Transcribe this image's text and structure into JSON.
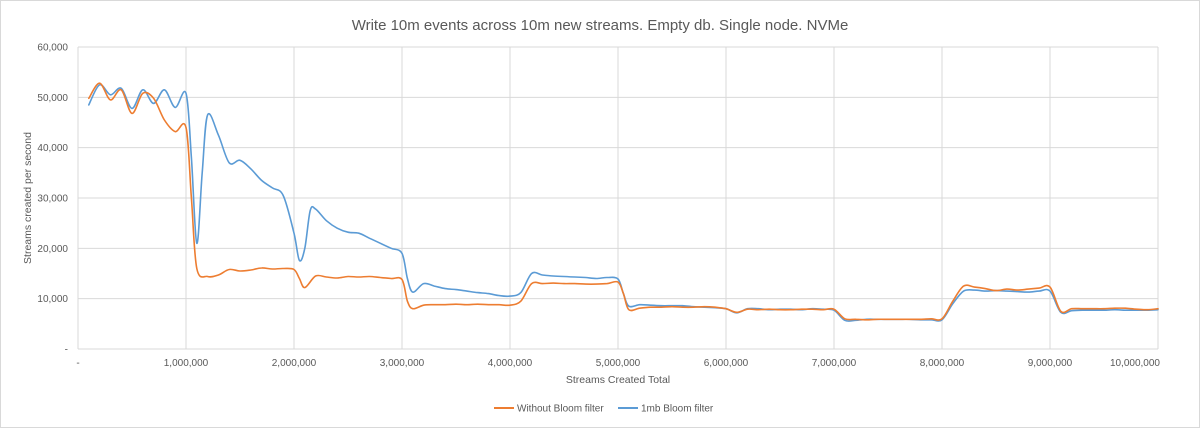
{
  "chart_data": {
    "type": "line",
    "title": "Write 10m events across 10m new streams. Empty db. Single node. NVMe",
    "xlabel": "Streams Created Total",
    "ylabel": "Streams created per second",
    "xlim": [
      0,
      10000000
    ],
    "ylim": [
      0,
      60000
    ],
    "x_ticks": [
      "-",
      "1,000,000",
      "2,000,000",
      "3,000,000",
      "4,000,000",
      "5,000,000",
      "6,000,000",
      "7,000,000",
      "8,000,000",
      "9,000,000",
      "10,000,000"
    ],
    "y_ticks": [
      "-",
      "10,000",
      "20,000",
      "30,000",
      "40,000",
      "50,000",
      "60,000"
    ],
    "grid": "vertical and horizontal",
    "legend_position": "bottom",
    "series": [
      {
        "name": "Without Bloom filter",
        "color": "#ED7D31",
        "x": [
          100000,
          200000,
          300000,
          400000,
          500000,
          600000,
          700000,
          800000,
          900000,
          1000000,
          1050000,
          1100000,
          1200000,
          1300000,
          1400000,
          1500000,
          1600000,
          1700000,
          1800000,
          1900000,
          2000000,
          2050000,
          2100000,
          2200000,
          2300000,
          2400000,
          2500000,
          2600000,
          2700000,
          2800000,
          2900000,
          3000000,
          3050000,
          3100000,
          3200000,
          3300000,
          3400000,
          3500000,
          3600000,
          3700000,
          3800000,
          3900000,
          4000000,
          4100000,
          4200000,
          4300000,
          4400000,
          4500000,
          4600000,
          4700000,
          4800000,
          4900000,
          5000000,
          5050000,
          5100000,
          5200000,
          5300000,
          5400000,
          5500000,
          5600000,
          5700000,
          5800000,
          5900000,
          6000000,
          6100000,
          6200000,
          6300000,
          6400000,
          6500000,
          6600000,
          6700000,
          6800000,
          6900000,
          7000000,
          7100000,
          7200000,
          7300000,
          7400000,
          7500000,
          7600000,
          7700000,
          7800000,
          7900000,
          8000000,
          8100000,
          8200000,
          8300000,
          8400000,
          8500000,
          8600000,
          8700000,
          8800000,
          8900000,
          9000000,
          9100000,
          9200000,
          9300000,
          9400000,
          9500000,
          9600000,
          9700000,
          9800000,
          9900000,
          10000000
        ],
        "values": [
          49800,
          52800,
          49500,
          51500,
          46800,
          50800,
          49800,
          45500,
          43200,
          44000,
          30000,
          16000,
          14400,
          14700,
          15800,
          15500,
          15700,
          16100,
          15900,
          16000,
          15800,
          14000,
          12200,
          14500,
          14300,
          14100,
          14400,
          14300,
          14400,
          14200,
          14000,
          13800,
          9500,
          8000,
          8700,
          8800,
          8800,
          8900,
          8800,
          8900,
          8800,
          8800,
          8700,
          9500,
          13000,
          13000,
          13100,
          13000,
          13000,
          12900,
          12900,
          13000,
          13300,
          11000,
          7800,
          8100,
          8300,
          8300,
          8400,
          8300,
          8300,
          8400,
          8300,
          8000,
          7300,
          7900,
          7800,
          7900,
          7800,
          7800,
          7900,
          7900,
          7800,
          7900,
          6000,
          5900,
          5800,
          5900,
          5900,
          5900,
          5900,
          5900,
          6000,
          6000,
          9500,
          12500,
          12300,
          12000,
          11600,
          11900,
          11700,
          11900,
          12100,
          12300,
          7500,
          8000,
          8000,
          8000,
          8000,
          8100,
          8100,
          7900,
          7800,
          8000
        ]
      },
      {
        "name": "1mb Bloom filter",
        "color": "#5B9BD5",
        "x": [
          100000,
          200000,
          300000,
          400000,
          500000,
          600000,
          700000,
          800000,
          900000,
          1000000,
          1050000,
          1100000,
          1150000,
          1200000,
          1300000,
          1400000,
          1500000,
          1600000,
          1700000,
          1800000,
          1900000,
          2000000,
          2050000,
          2100000,
          2150000,
          2200000,
          2300000,
          2400000,
          2500000,
          2600000,
          2700000,
          2800000,
          2900000,
          3000000,
          3050000,
          3100000,
          3200000,
          3300000,
          3400000,
          3500000,
          3600000,
          3700000,
          3800000,
          3900000,
          4000000,
          4100000,
          4200000,
          4300000,
          4400000,
          4500000,
          4600000,
          4700000,
          4800000,
          4900000,
          5000000,
          5050000,
          5100000,
          5200000,
          5300000,
          5400000,
          5500000,
          5600000,
          5700000,
          5800000,
          5900000,
          6000000,
          6100000,
          6200000,
          6300000,
          6400000,
          6500000,
          6600000,
          6700000,
          6800000,
          6900000,
          7000000,
          7100000,
          7200000,
          7300000,
          7400000,
          7500000,
          7600000,
          7700000,
          7800000,
          7900000,
          8000000,
          8100000,
          8200000,
          8300000,
          8400000,
          8500000,
          8600000,
          8700000,
          8800000,
          8900000,
          9000000,
          9100000,
          9200000,
          9300000,
          9400000,
          9500000,
          9600000,
          9700000,
          9800000,
          9900000,
          10000000
        ],
        "values": [
          48500,
          52500,
          50500,
          51800,
          47800,
          51500,
          48800,
          51500,
          48000,
          50800,
          38000,
          21000,
          35000,
          46500,
          42500,
          37000,
          37500,
          35800,
          33500,
          32000,
          30500,
          23000,
          17600,
          20000,
          27500,
          27800,
          25500,
          24000,
          23200,
          23000,
          22000,
          21000,
          20000,
          19000,
          14000,
          11300,
          13000,
          12500,
          12000,
          11800,
          11500,
          11200,
          11000,
          10600,
          10500,
          11200,
          15000,
          14700,
          14500,
          14400,
          14300,
          14200,
          14000,
          14200,
          13900,
          11000,
          8500,
          8800,
          8700,
          8600,
          8600,
          8600,
          8400,
          8300,
          8200,
          8000,
          7200,
          8000,
          8000,
          7800,
          7900,
          7900,
          7800,
          8000,
          7900,
          7700,
          5700,
          5700,
          5900,
          5900,
          5900,
          5900,
          5900,
          5800,
          5800,
          5800,
          9000,
          11500,
          11700,
          11500,
          11600,
          11500,
          11400,
          11300,
          11500,
          11500,
          7300,
          7600,
          7700,
          7700,
          7700,
          7800,
          7700,
          7700,
          7700,
          7800
        ]
      }
    ]
  }
}
